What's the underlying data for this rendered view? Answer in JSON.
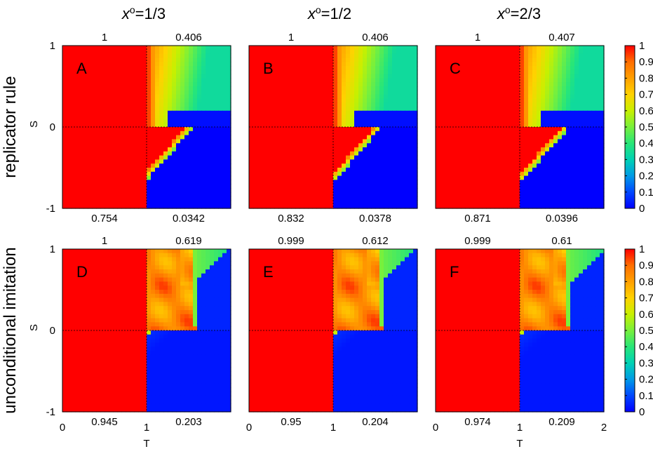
{
  "chart_data": {
    "type": "heatmap",
    "column_titles": [
      {
        "var": "x",
        "sup": "o",
        "value": "=1/3"
      },
      {
        "var": "x",
        "sup": "o",
        "value": "=1/2"
      },
      {
        "var": "x",
        "sup": "o",
        "value": "=2/3"
      }
    ],
    "row_titles": [
      "replicator rule",
      "unconditional imitation"
    ],
    "xlabel": "T",
    "ylabel": "S",
    "xlim": [
      0,
      2
    ],
    "ylim": [
      -1,
      1
    ],
    "x_ticks": [
      "0",
      "1",
      "2"
    ],
    "y_ticks": [
      "1",
      "0",
      "-1"
    ],
    "colorbar": {
      "min": 0,
      "max": 1,
      "ticks": [
        "1",
        "0.9",
        "0.8",
        "0.7",
        "0.6",
        "0.5",
        "0.4",
        "0.3",
        "0.2",
        "0.1",
        "0"
      ],
      "palette": [
        "#0000ff",
        "#0048ff",
        "#009be6",
        "#00d2b4",
        "#28e678",
        "#78f03c",
        "#c8f000",
        "#ffd200",
        "#ffa000",
        "#ff6e00",
        "#ff0000"
      ]
    },
    "panels": [
      {
        "label": "A",
        "rule": "replicator",
        "x0": "1/3",
        "corners": {
          "top_left": "1",
          "top_right": "0.406",
          "bottom_left": "0.754",
          "bottom_right": "0.0342"
        }
      },
      {
        "label": "B",
        "rule": "replicator",
        "x0": "1/2",
        "corners": {
          "top_left": "1",
          "top_right": "0.406",
          "bottom_left": "0.832",
          "bottom_right": "0.0378"
        }
      },
      {
        "label": "C",
        "rule": "replicator",
        "x0": "2/3",
        "corners": {
          "top_left": "1",
          "top_right": "0.407",
          "bottom_left": "0.871",
          "bottom_right": "0.0396"
        }
      },
      {
        "label": "D",
        "rule": "unconditional",
        "x0": "1/3",
        "corners": {
          "top_left": "1",
          "top_right": "0.619",
          "bottom_left": "0.945",
          "bottom_right": "0.203"
        }
      },
      {
        "label": "E",
        "rule": "unconditional",
        "x0": "1/2",
        "corners": {
          "top_left": "0.999",
          "top_right": "0.612",
          "bottom_left": "0.95",
          "bottom_right": "0.204"
        }
      },
      {
        "label": "F",
        "rule": "unconditional",
        "x0": "2/3",
        "corners": {
          "top_left": "0.999",
          "top_right": "0.61",
          "bottom_left": "0.974",
          "bottom_right": "0.209"
        }
      }
    ]
  }
}
